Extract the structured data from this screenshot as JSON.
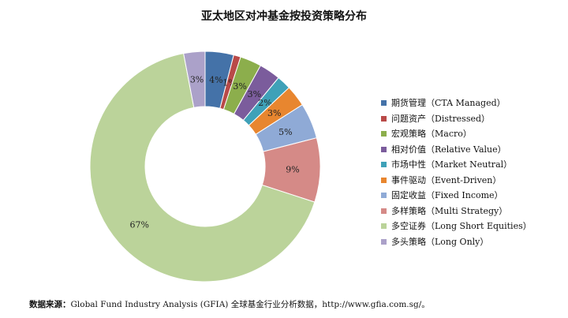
{
  "chart_data": {
    "type": "pie",
    "variant": "donut",
    "title": "亚太地区对冲基金按投资策略分布",
    "legend_position": "right",
    "categories": [
      "期货管理（CTA Managed）",
      "问题资产（Distressed）",
      "宏观策略（Macro）",
      "相对价值（Relative Value）",
      "市场中性（Market Neutral）",
      "事件驱动（Event-Driven）",
      "固定收益（Fixed Income）",
      "多样策略（Multi Strategy）",
      "多空证券（Long Short Equities）",
      "多头策略（Long Only）"
    ],
    "values": [
      4,
      1,
      3,
      3,
      2,
      3,
      5,
      9,
      67,
      3
    ],
    "data_labels": [
      "4%",
      "1%",
      "3%",
      "3%",
      "2%",
      "3%",
      "5%",
      "9%",
      "67%",
      "3%"
    ],
    "colors": [
      "#4472A8",
      "#B94A48",
      "#8CAE4C",
      "#7B5C9C",
      "#3FA1B8",
      "#E8862F",
      "#8FAAD6",
      "#D58A87",
      "#BBD39A",
      "#ABA1C9"
    ]
  },
  "source": {
    "label": "数据来源：",
    "text": "Global Fund Industry Analysis (GFIA) 全球基金行业分析数据，http://www.gfia.com.sg/。"
  }
}
